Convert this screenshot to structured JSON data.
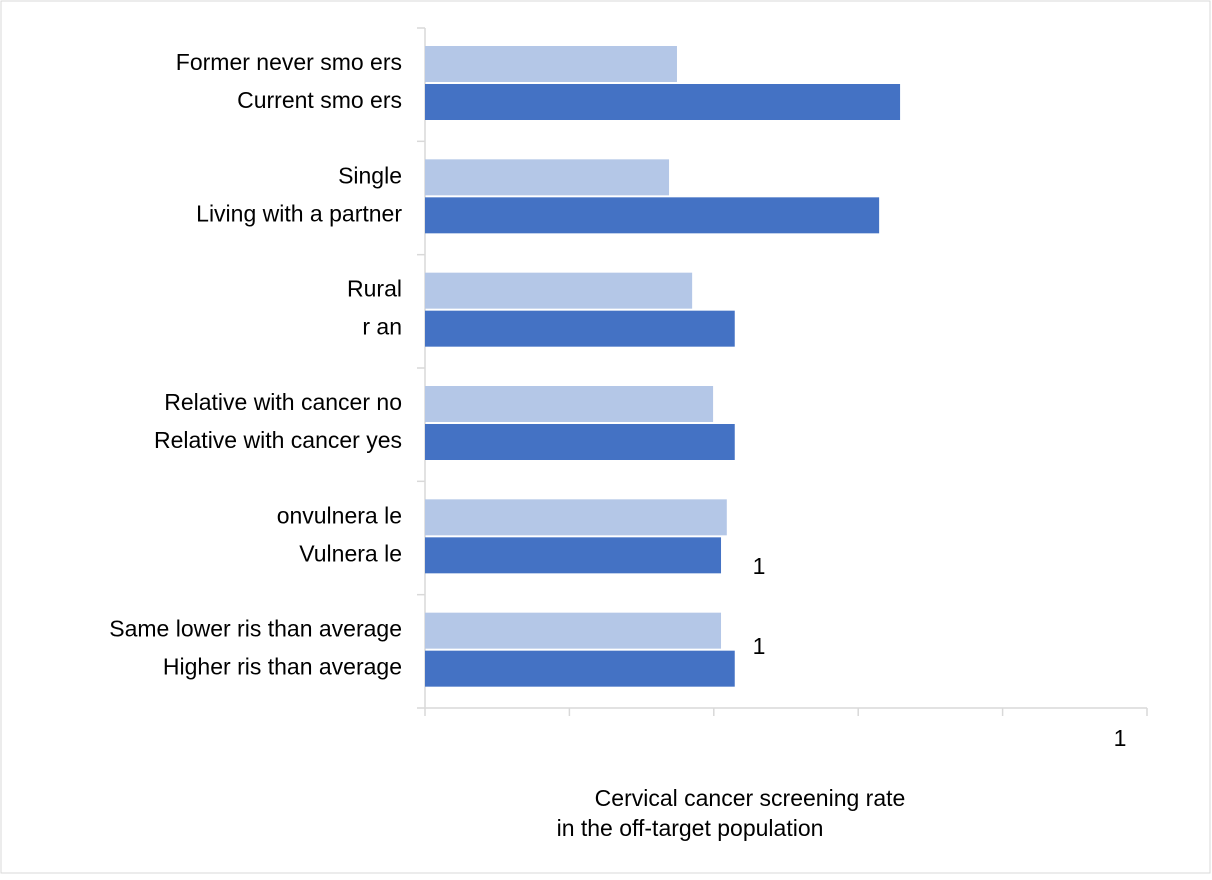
{
  "chart_data": {
    "type": "bar",
    "orientation": "horizontal",
    "categories": [
      "Former never smo ers",
      "Current smo ers",
      "Single",
      "Living with a partner",
      "Rural",
      "r an",
      "Relative with cancer  no",
      "Relative with cancer  yes",
      "onvulnera le",
      "Vulnera le",
      "Same lower ris   than average",
      "Higher ris   than average"
    ],
    "values": [
      0.349,
      0.658,
      0.338,
      0.629,
      0.37,
      0.429,
      0.399,
      0.429,
      0.418,
      0.41,
      0.41,
      0.429
    ],
    "colors": [
      "#b4c7e7",
      "#4472c4",
      "#b4c7e7",
      "#4472c4",
      "#b4c7e7",
      "#4472c4",
      "#b4c7e7",
      "#4472c4",
      "#b4c7e7",
      "#4472c4",
      "#b4c7e7",
      "#4472c4"
    ],
    "xlim": [
      0,
      1
    ],
    "xticks": [
      {
        "value": 0,
        "label": null
      },
      {
        "value": 0.2,
        "label": null
      },
      {
        "value": 0.4,
        "label": null
      },
      {
        "value": 0.6,
        "label": null
      },
      {
        "value": 0.8,
        "label": null
      },
      1
    ],
    "xlabel": [
      "Cervical cancer screening rate",
      "in the off-target population"
    ],
    "annotations": [
      "1",
      "1"
    ]
  }
}
